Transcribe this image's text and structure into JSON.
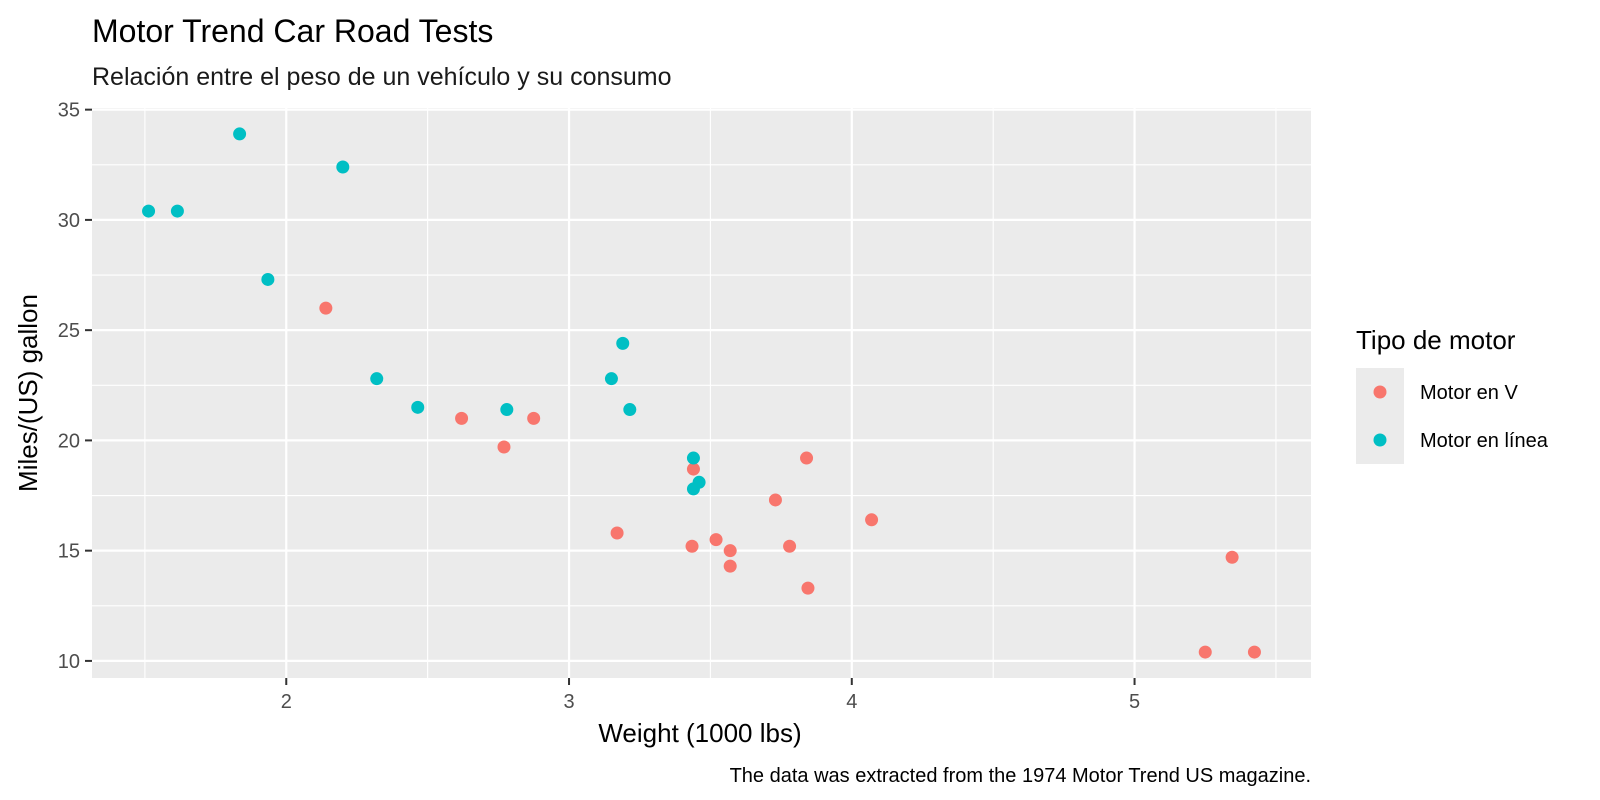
{
  "chart_data": {
    "type": "scatter",
    "title": "Motor Trend Car Road Tests",
    "subtitle": "Relación entre el peso de un vehículo y su consumo",
    "xlabel": "Weight (1000 lbs)",
    "ylabel": "Miles/(US) gallon",
    "caption": "The data was extracted from the 1974 Motor Trend US magazine.",
    "xlim": [
      1.313,
      5.624
    ],
    "ylim": [
      9.225,
      35.075
    ],
    "x_ticks": [
      2,
      3,
      4,
      5
    ],
    "y_ticks": [
      10,
      15,
      20,
      25,
      30,
      35
    ],
    "x_minor": [
      1.5,
      2.5,
      3.5,
      4.5,
      5.5
    ],
    "y_minor": [
      12.5,
      17.5,
      22.5,
      27.5,
      32.5
    ],
    "grid": true,
    "legend": {
      "title": "Tipo de motor",
      "position": "right",
      "entries": [
        {
          "label": "Motor en V",
          "color": "#F8766D"
        },
        {
          "label": "Motor en línea",
          "color": "#00BFC4"
        }
      ]
    },
    "series": [
      {
        "name": "Motor en V",
        "color": "#F8766D",
        "points": [
          [
            2.14,
            26.0
          ],
          [
            2.62,
            21.0
          ],
          [
            2.875,
            21.0
          ],
          [
            2.77,
            19.7
          ],
          [
            3.44,
            18.7
          ],
          [
            3.84,
            19.2
          ],
          [
            3.73,
            17.3
          ],
          [
            4.07,
            16.4
          ],
          [
            3.17,
            15.8
          ],
          [
            3.435,
            15.2
          ],
          [
            3.52,
            15.5
          ],
          [
            3.57,
            15.0
          ],
          [
            3.57,
            14.3
          ],
          [
            3.78,
            15.2
          ],
          [
            3.845,
            13.3
          ],
          [
            5.345,
            14.7
          ],
          [
            5.25,
            10.4
          ],
          [
            5.424,
            10.4
          ]
        ]
      },
      {
        "name": "Motor en línea",
        "color": "#00BFC4",
        "points": [
          [
            1.835,
            33.9
          ],
          [
            2.2,
            32.4
          ],
          [
            1.513,
            30.4
          ],
          [
            1.615,
            30.4
          ],
          [
            1.935,
            27.3
          ],
          [
            2.32,
            22.8
          ],
          [
            2.465,
            21.5
          ],
          [
            2.78,
            21.4
          ],
          [
            3.15,
            22.8
          ],
          [
            3.19,
            24.4
          ],
          [
            3.215,
            21.4
          ],
          [
            3.44,
            19.2
          ],
          [
            3.46,
            18.1
          ],
          [
            3.44,
            17.8
          ]
        ]
      }
    ]
  },
  "colors": {
    "panel_background": "#EBEBEB",
    "grid_major": "#FFFFFF",
    "tick_text": "#4D4D4D"
  }
}
